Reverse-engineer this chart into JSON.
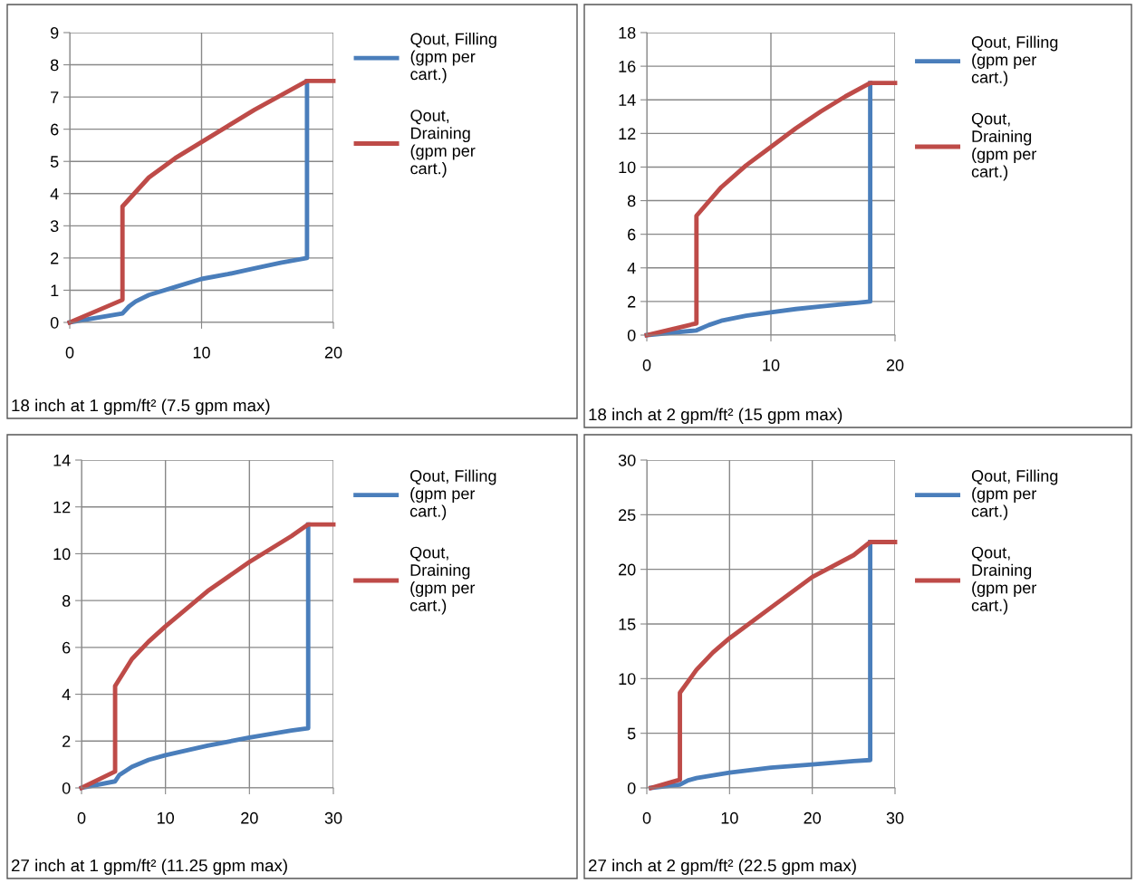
{
  "chart_data": [
    {
      "type": "line",
      "xlim": [
        0,
        20
      ],
      "ylim": [
        0,
        9
      ],
      "xticks": [
        0,
        10,
        20
      ],
      "yticks": [
        0,
        1,
        2,
        3,
        4,
        5,
        6,
        7,
        8,
        9
      ],
      "grid": true,
      "legend": "right",
      "marker": "none",
      "line_style": "solid",
      "annotations": [
        "18 inch at 1 gpm/ft² (7.5 gpm max)"
      ],
      "series": [
        {
          "name": "Qout, Filling\n(gpm per\ncart.)",
          "color": "#4a7ebb",
          "x": [
            0,
            4,
            4.5,
            5,
            6,
            8,
            10,
            12,
            14,
            16,
            18,
            18
          ],
          "values": [
            0,
            0.28,
            0.5,
            0.65,
            0.85,
            1.1,
            1.35,
            1.5,
            1.68,
            1.85,
            2.0,
            7.5
          ]
        },
        {
          "name": "Qout,\nDraining\n(gpm per\ncart.)",
          "color": "#be4b48",
          "x": [
            0,
            4,
            4,
            6,
            8,
            10,
            12,
            14,
            16,
            18,
            20
          ],
          "values": [
            0,
            0.7,
            3.6,
            4.5,
            5.1,
            5.6,
            6.1,
            6.6,
            7.05,
            7.5,
            7.5
          ]
        }
      ]
    },
    {
      "type": "line",
      "xlim": [
        0,
        20
      ],
      "ylim": [
        0,
        18
      ],
      "xticks": [
        0,
        10,
        20
      ],
      "yticks": [
        0,
        2,
        4,
        6,
        8,
        10,
        12,
        14,
        16,
        18
      ],
      "grid": true,
      "legend": "right",
      "marker": "none",
      "line_style": "solid",
      "annotations": [
        "18 inch at 2 gpm/ft² (15 gpm max)"
      ],
      "series": [
        {
          "name": "Qout, Filling\n(gpm per\ncart.)",
          "color": "#4a7ebb",
          "x": [
            0,
            4,
            5,
            6,
            8,
            10,
            12,
            14,
            16,
            18,
            18
          ],
          "values": [
            0,
            0.28,
            0.6,
            0.85,
            1.15,
            1.35,
            1.55,
            1.7,
            1.85,
            2.0,
            15
          ]
        },
        {
          "name": "Qout,\nDraining\n(gpm per\ncart.)",
          "color": "#be4b48",
          "x": [
            0,
            4,
            4,
            6,
            8,
            10,
            12,
            14,
            16,
            18,
            20
          ],
          "values": [
            0,
            0.7,
            7.1,
            8.8,
            10.1,
            11.2,
            12.3,
            13.3,
            14.2,
            15,
            15
          ]
        }
      ]
    },
    {
      "type": "line",
      "xlim": [
        0,
        30
      ],
      "ylim": [
        0,
        14
      ],
      "xticks": [
        0,
        10,
        20,
        30
      ],
      "yticks": [
        0,
        2,
        4,
        6,
        8,
        10,
        12,
        14
      ],
      "grid": true,
      "legend": "right",
      "marker": "none",
      "line_style": "solid",
      "annotations": [
        "27 inch at 1 gpm/ft² (11.25 gpm max)"
      ],
      "series": [
        {
          "name": "Qout, Filling\n(gpm per\ncart.)",
          "color": "#4a7ebb",
          "x": [
            0,
            4,
            4.5,
            6,
            8,
            10,
            15,
            20,
            25,
            27,
            27
          ],
          "values": [
            0,
            0.28,
            0.55,
            0.9,
            1.2,
            1.4,
            1.8,
            2.15,
            2.45,
            2.55,
            11.25
          ]
        },
        {
          "name": "Qout,\nDraining\n(gpm per\ncart.)",
          "color": "#be4b48",
          "x": [
            0,
            4,
            4,
            6,
            8,
            10,
            15,
            20,
            25,
            27,
            30
          ],
          "values": [
            0,
            0.7,
            4.35,
            5.5,
            6.25,
            6.9,
            8.4,
            9.65,
            10.75,
            11.25,
            11.25
          ]
        }
      ]
    },
    {
      "type": "line",
      "xlim": [
        0,
        30
      ],
      "ylim": [
        0,
        30
      ],
      "xticks": [
        0,
        10,
        20,
        30
      ],
      "yticks": [
        0,
        5,
        10,
        15,
        20,
        25,
        30
      ],
      "grid": true,
      "legend": "right",
      "marker": "none",
      "line_style": "solid",
      "annotations": [
        "27 inch at 2 gpm/ft² (22.5 gpm max)"
      ],
      "series": [
        {
          "name": "Qout, Filling\n(gpm per\ncart.)",
          "color": "#4a7ebb",
          "x": [
            0.5,
            4,
            5,
            6,
            10,
            15,
            20,
            25,
            27,
            27
          ],
          "values": [
            0,
            0.3,
            0.7,
            0.9,
            1.4,
            1.85,
            2.15,
            2.45,
            2.55,
            22.5
          ]
        },
        {
          "name": "Qout,\nDraining\n(gpm per\ncart.)",
          "color": "#be4b48",
          "x": [
            0.5,
            4,
            4,
            6,
            8,
            10,
            15,
            20,
            25,
            27,
            30
          ],
          "values": [
            0,
            0.75,
            8.7,
            10.8,
            12.4,
            13.7,
            16.5,
            19.3,
            21.3,
            22.5,
            22.5
          ]
        }
      ]
    }
  ]
}
